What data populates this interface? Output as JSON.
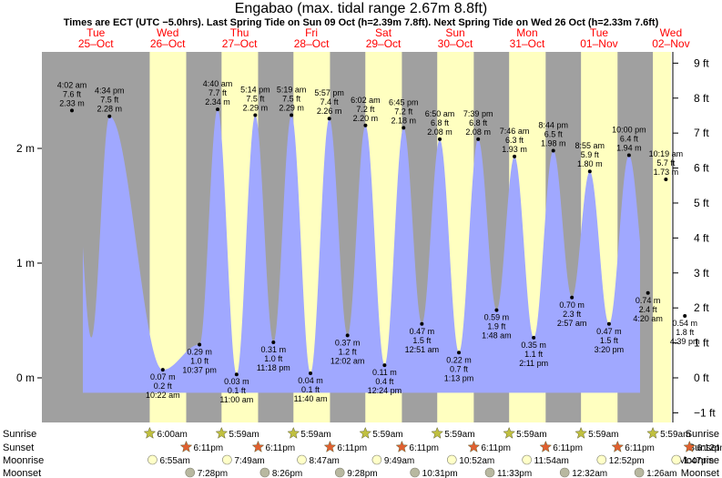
{
  "title": "Engabao (max. tidal range 2.67m 8.8ft)",
  "subtitle": "Times are ECT (UTC −5.0hrs). Last Spring Tide on Sun 09 Oct (h=2.39m 7.8ft). Next Spring Tide on Wed 26 Oct (h=2.33m 7.6ft)",
  "colors": {
    "night": "#a0a0a0",
    "day": "#ffffc0",
    "tide": "#a0a8ff",
    "date": "#ff0000",
    "sunrise_star": "#c0c040",
    "sunset_star": "#e06030",
    "moonrise": "#ffffc8",
    "moonset": "#b8b8a0"
  },
  "chart_data": {
    "type": "area",
    "x_unit": "hours after 25-Oct 00:00 ECT",
    "ylim_m": [
      -0.4,
      2.88
    ],
    "ylim_ft": [
      -1.3,
      9.3
    ],
    "y_left_ticks": [
      {
        "v": 0,
        "label": "0 m"
      },
      {
        "v": 1,
        "label": "1 m"
      },
      {
        "v": 2,
        "label": "2 m"
      }
    ],
    "y_right_ticks": [
      {
        "v": -1,
        "label": "−1 ft"
      },
      {
        "v": 0,
        "label": "0 ft"
      },
      {
        "v": 1,
        "label": "1 ft"
      },
      {
        "v": 2,
        "label": "2 ft"
      },
      {
        "v": 3,
        "label": "3 ft"
      },
      {
        "v": 4,
        "label": "4 ft"
      },
      {
        "v": 5,
        "label": "5 ft"
      },
      {
        "v": 6,
        "label": "6 ft"
      },
      {
        "v": 7,
        "label": "7 ft"
      },
      {
        "v": 8,
        "label": "8 ft"
      },
      {
        "v": 9,
        "label": "9 ft"
      }
    ],
    "days": [
      {
        "dow": "Tue",
        "date": "25–Oct"
      },
      {
        "dow": "Wed",
        "date": "26–Oct"
      },
      {
        "dow": "Thu",
        "date": "27–Oct"
      },
      {
        "dow": "Fri",
        "date": "28–Oct"
      },
      {
        "dow": "Sat",
        "date": "29–Oct"
      },
      {
        "dow": "Sun",
        "date": "30–Oct"
      },
      {
        "dow": "Mon",
        "date": "31–Oct"
      },
      {
        "dow": "Tue",
        "date": "01–Nov"
      },
      {
        "dow": "Wed",
        "date": "02–Nov"
      }
    ],
    "daylight": [
      {
        "rise": 30.0,
        "set": 42.18
      },
      {
        "rise": 53.98,
        "set": 66.18
      },
      {
        "rise": 77.98,
        "set": 90.18
      },
      {
        "rise": 101.98,
        "set": 114.18
      },
      {
        "rise": 125.98,
        "set": 138.18
      },
      {
        "rise": 149.98,
        "set": 162.18
      },
      {
        "rise": 173.98,
        "set": 186.18
      },
      {
        "rise": 197.98,
        "set": 210.2
      }
    ],
    "tide_extremes": [
      {
        "x": -6.0,
        "m": 1.07
      },
      {
        "x": 4.03,
        "m": 2.33,
        "type": "high",
        "time": "4:02 am",
        "ft": "7.6 ft",
        "height": "2.33 m"
      },
      {
        "x": 10.5,
        "m": 0.35
      },
      {
        "x": 16.57,
        "m": 2.28,
        "type": "high",
        "time": "4:34 pm",
        "ft": "7.5 ft",
        "height": "2.28 m"
      },
      {
        "x": 34.37,
        "m": 0.07,
        "type": "low",
        "time": "10:22 am",
        "ft": "0.2 ft",
        "height": "0.07 m"
      },
      {
        "x": 46.62,
        "m": 0.29,
        "type": "low",
        "time": "10:37 pm",
        "ft": "1.0 ft",
        "height": "0.29 m"
      },
      {
        "x": 52.67,
        "m": 2.34,
        "type": "high",
        "time": "4:40 am",
        "ft": "7.7 ft",
        "height": "2.34 m"
      },
      {
        "x": 59.0,
        "m": 0.03,
        "type": "low",
        "time": "11:00 am",
        "ft": "0.1 ft",
        "height": "0.03 m"
      },
      {
        "x": 65.23,
        "m": 2.29,
        "type": "high",
        "time": "5:14 pm",
        "ft": "7.5 ft",
        "height": "2.29 m"
      },
      {
        "x": 71.3,
        "m": 0.31,
        "type": "low",
        "time": "11:18 pm",
        "ft": "1.0 ft",
        "height": "0.31 m"
      },
      {
        "x": 77.32,
        "m": 2.29,
        "type": "high",
        "time": "5:19 am",
        "ft": "7.5 ft",
        "height": "2.29 m"
      },
      {
        "x": 83.67,
        "m": 0.04,
        "type": "low",
        "time": "11:40 am",
        "ft": "0.1 ft",
        "height": "0.04 m"
      },
      {
        "x": 89.95,
        "m": 2.26,
        "type": "high",
        "time": "5:57 pm",
        "ft": "7.4 ft",
        "height": "2.26 m"
      },
      {
        "x": 96.03,
        "m": 0.37,
        "type": "low",
        "time": "12:02 am",
        "ft": "1.2 ft",
        "height": "0.37 m"
      },
      {
        "x": 102.03,
        "m": 2.2,
        "type": "high",
        "time": "6:02 am",
        "ft": "7.2 ft",
        "height": "2.20 m"
      },
      {
        "x": 108.4,
        "m": 0.11,
        "type": "low",
        "time": "12:24 pm",
        "ft": "0.4 ft",
        "height": "0.11 m"
      },
      {
        "x": 114.75,
        "m": 2.18,
        "type": "high",
        "time": "6:45 pm",
        "ft": "7.2 ft",
        "height": "2.18 m"
      },
      {
        "x": 120.85,
        "m": 0.47,
        "type": "low",
        "time": "12:51 am",
        "ft": "1.5 ft",
        "height": "0.47 m"
      },
      {
        "x": 126.83,
        "m": 2.08,
        "type": "high",
        "time": "6:50 am",
        "ft": "6.8 ft",
        "height": "2.08 m"
      },
      {
        "x": 133.22,
        "m": 0.22,
        "type": "low",
        "time": "1:13 pm",
        "ft": "0.7 ft",
        "height": "0.22 m"
      },
      {
        "x": 139.65,
        "m": 2.08,
        "type": "high",
        "time": "7:39 pm",
        "ft": "6.8 ft",
        "height": "2.08 m"
      },
      {
        "x": 145.8,
        "m": 0.59,
        "type": "low",
        "time": "1:48 am",
        "ft": "1.9 ft",
        "height": "0.59 m"
      },
      {
        "x": 151.77,
        "m": 1.93,
        "type": "high",
        "time": "7:46 am",
        "ft": "6.3 ft",
        "height": "1.93 m"
      },
      {
        "x": 158.18,
        "m": 0.35,
        "type": "low",
        "time": "2:11 pm",
        "ft": "1.1 ft",
        "height": "0.35 m"
      },
      {
        "x": 164.73,
        "m": 1.98,
        "type": "high",
        "time": "8:44 pm",
        "ft": "6.5 ft",
        "height": "1.98 m"
      },
      {
        "x": 170.95,
        "m": 0.7,
        "type": "low",
        "time": "2:57 am",
        "ft": "2.3 ft",
        "height": "0.70 m"
      },
      {
        "x": 176.92,
        "m": 1.8,
        "type": "high",
        "time": "8:55 am",
        "ft": "5.9 ft",
        "height": "1.80 m"
      },
      {
        "x": 183.33,
        "m": 0.47,
        "type": "low",
        "time": "3:20 pm",
        "ft": "1.5 ft",
        "height": "0.47 m"
      },
      {
        "x": 190.0,
        "m": 1.94,
        "type": "high",
        "time": "10:00 pm",
        "ft": "6.4 ft",
        "height": "1.94 m"
      },
      {
        "x": 196.33,
        "m": 0.74,
        "type": "low",
        "time": "4:20 am",
        "ft": "2.4 ft",
        "height": "0.74 m"
      },
      {
        "x": 202.32,
        "m": 1.73,
        "type": "high",
        "time": "10:19 am",
        "ft": "5.7 ft",
        "height": "1.73 m"
      },
      {
        "x": 208.65,
        "m": 0.54,
        "type": "low",
        "time": "4:39 pm",
        "ft": "1.8 ft",
        "height": "0.54 m"
      },
      {
        "x": 214.7,
        "m": 1.7
      }
    ],
    "row_labels": {
      "sunrise": "Sunrise",
      "sunset": "Sunset",
      "moonrise": "Moonrise",
      "moonset": "Moonset"
    },
    "sunrise": [
      {
        "x": 30.0,
        "label": "6:00am"
      },
      {
        "x": 53.98,
        "label": "5:59am"
      },
      {
        "x": 77.98,
        "label": "5:59am"
      },
      {
        "x": 101.98,
        "label": "5:59am"
      },
      {
        "x": 125.98,
        "label": "5:59am"
      },
      {
        "x": 149.98,
        "label": "5:59am"
      },
      {
        "x": 173.98,
        "label": "5:59am"
      },
      {
        "x": 197.98,
        "label": "5:59am"
      }
    ],
    "sunset": [
      {
        "x": 42.18,
        "label": "6:11pm"
      },
      {
        "x": 66.18,
        "label": "6:11pm"
      },
      {
        "x": 90.18,
        "label": "6:11pm"
      },
      {
        "x": 114.18,
        "label": "6:11pm"
      },
      {
        "x": 138.18,
        "label": "6:11pm"
      },
      {
        "x": 162.18,
        "label": "6:11pm"
      },
      {
        "x": 186.18,
        "label": "6:11pm"
      },
      {
        "x": 210.2,
        "label": "6:12pm"
      }
    ],
    "moonrise": [
      {
        "x": 30.92,
        "label": "6:55am"
      },
      {
        "x": 55.82,
        "label": "7:49am"
      },
      {
        "x": 80.78,
        "label": "8:47am"
      },
      {
        "x": 105.82,
        "label": "9:49am"
      },
      {
        "x": 130.87,
        "label": "10:52am"
      },
      {
        "x": 155.9,
        "label": "11:54am"
      },
      {
        "x": 180.87,
        "label": "12:52pm"
      },
      {
        "x": 205.78,
        "label": "1:47pm"
      }
    ],
    "moonset": [
      {
        "x": 43.47,
        "label": "7:28pm"
      },
      {
        "x": 68.43,
        "label": "8:26pm"
      },
      {
        "x": 93.47,
        "label": "9:28pm"
      },
      {
        "x": 118.52,
        "label": "10:31pm"
      },
      {
        "x": 143.55,
        "label": "11:33pm"
      },
      {
        "x": 168.53,
        "label": "12:32am"
      },
      {
        "x": 193.43,
        "label": "1:26am"
      }
    ]
  }
}
